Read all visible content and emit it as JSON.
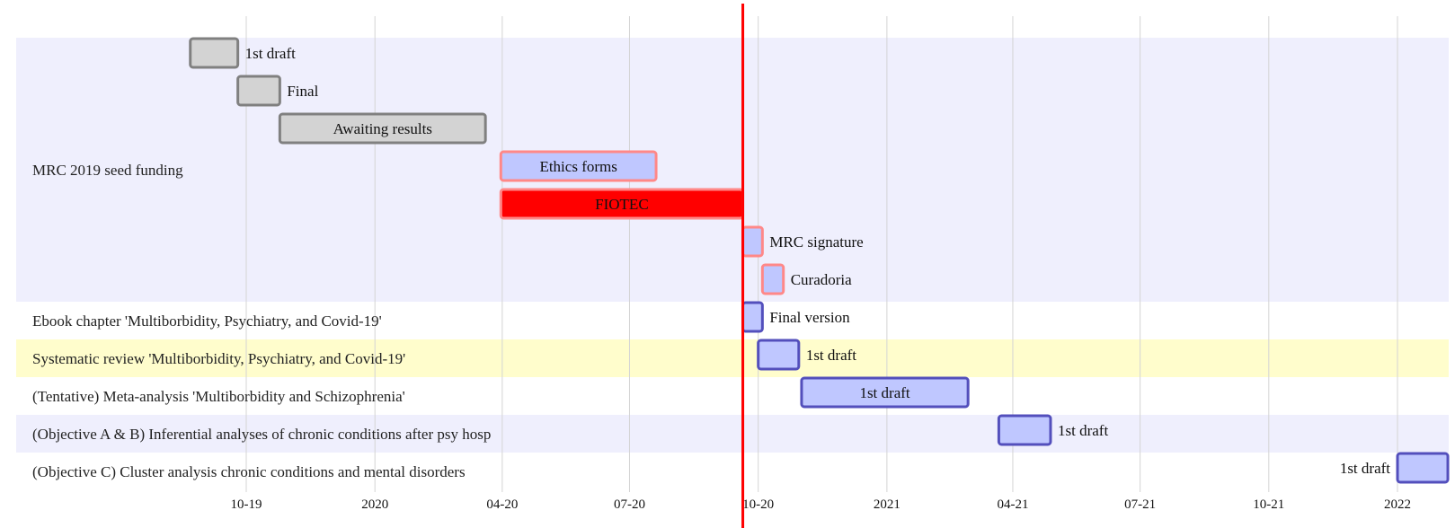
{
  "chart_data": {
    "type": "gantt",
    "x_axis": {
      "ticks": [
        "10-19",
        "2020",
        "04-20",
        "07-20",
        "10-20",
        "2021",
        "04-21",
        "07-21",
        "10-21",
        "2022"
      ],
      "grid": true
    },
    "today": "2020-09-20",
    "sections": [
      {
        "name": "MRC 2019 seed funding",
        "tasks": [
          {
            "label": "1st draft",
            "start": "2019-08-22",
            "end": "2019-09-25",
            "status": "done"
          },
          {
            "label": "Final",
            "start": "2019-09-25",
            "end": "2019-10-25",
            "status": "done"
          },
          {
            "label": "Awaiting results",
            "start": "2019-10-25",
            "end": "2020-03-20",
            "status": "done"
          },
          {
            "label": "Ethics forms",
            "start": "2020-03-31",
            "end": "2020-07-20",
            "status": "active"
          },
          {
            "label": "FIOTEC",
            "start": "2020-03-31",
            "end": "2020-09-20",
            "status": "critical"
          },
          {
            "label": "MRC signature",
            "start": "2020-09-20",
            "end": "2020-10-04",
            "status": "active"
          },
          {
            "label": "Curadoria",
            "start": "2020-10-04",
            "end": "2020-10-19",
            "status": "active"
          }
        ]
      },
      {
        "name": "Ebook chapter 'Multiborbidity, Psychiatry, and Covid-19'",
        "tasks": [
          {
            "label": "Final version",
            "start": "2020-09-20",
            "end": "2020-10-04",
            "status": "planned"
          }
        ]
      },
      {
        "name": "Systematic review 'Multiborbidity, Psychiatry, and Covid-19'",
        "tasks": [
          {
            "label": "1st draft",
            "start": "2020-10-01",
            "end": "2020-10-30",
            "status": "planned"
          }
        ]
      },
      {
        "name": "(Tentative) Meta-analysis 'Multiborbidity and Schizophrenia'",
        "tasks": [
          {
            "label": "1st draft",
            "start": "2020-11-01",
            "end": "2021-02-28",
            "status": "planned"
          }
        ]
      },
      {
        "name": "(Objective A & B) Inferential analyses of chronic conditions after psy hosp",
        "tasks": [
          {
            "label": "1st draft",
            "start": "2021-03-22",
            "end": "2021-04-28",
            "status": "planned"
          }
        ]
      },
      {
        "name": "(Objective C) Cluster analysis chronic conditions and mental disorders",
        "tasks": [
          {
            "label": "1st draft",
            "start": "2022-01-01",
            "end": "2022-02-06",
            "status": "planned"
          }
        ]
      }
    ]
  },
  "colors": {
    "section_band_a": "#efeffd",
    "section_band_b": "#ffffff",
    "section_band_highlight": "#fffdcc",
    "grid": "#d4d4d4",
    "today_line": "#ff0000",
    "done_fill": "#d3d3d3",
    "done_stroke": "#808080",
    "active_fill": "#bfc7ff",
    "active_stroke": "#ff8888",
    "planned_fill": "#bfc7ff",
    "planned_stroke": "#534fbc",
    "critical_fill": "#ff0000",
    "critical_stroke": "#ff8888",
    "critical_text": "#ffffff"
  }
}
